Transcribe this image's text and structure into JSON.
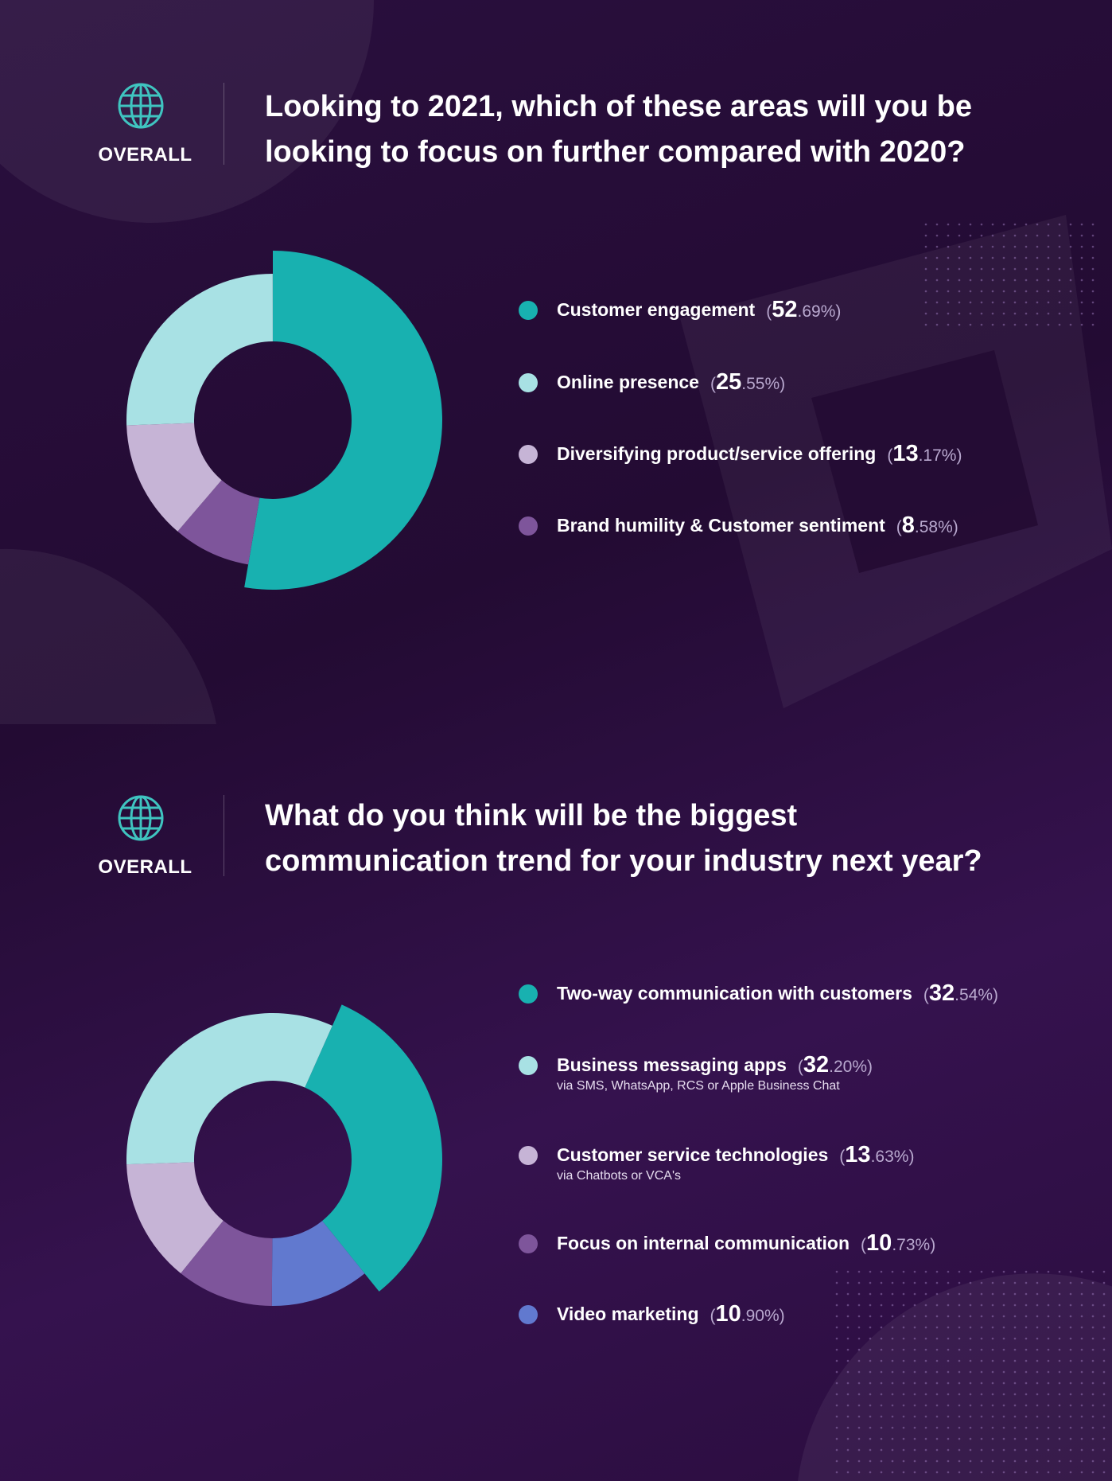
{
  "colors": {
    "teal": "#18b1b0",
    "light_cyan": "#a8e1e4",
    "lavender": "#c6b4d6",
    "purple": "#7e559b",
    "blue": "#6179cf"
  },
  "sections": [
    {
      "badge": "OVERALL",
      "icon": "globe-icon",
      "title_lines": [
        "Looking to 2021, which of these areas will you be",
        "looking to focus on further compared with 2020?"
      ]
    },
    {
      "badge": "OVERALL",
      "icon": "globe-icon",
      "title_lines": [
        "What do you think will be the biggest",
        "communication trend for your industry next year?"
      ]
    }
  ],
  "chart_data": [
    {
      "type": "pie",
      "donut": true,
      "legend": "right",
      "slices": [
        {
          "name": "Customer engagement",
          "value": 52.69,
          "int": "52",
          "dec": ".69",
          "color": "#18b1b0",
          "exploded": true
        },
        {
          "name": "Brand humility & Customer sentiment",
          "value": 8.58,
          "int": "8",
          "dec": ".58",
          "color": "#7e559b"
        },
        {
          "name": "Diversifying product/service offering",
          "value": 13.17,
          "int": "13",
          "dec": ".17",
          "color": "#c6b4d6"
        },
        {
          "name": "Online presence",
          "value": 25.55,
          "int": "25",
          "dec": ".55",
          "color": "#a8e1e4"
        }
      ],
      "legend_order": [
        0,
        3,
        2,
        1
      ]
    },
    {
      "type": "pie",
      "donut": true,
      "legend": "right",
      "slices": [
        {
          "name": "Two-way communication with customers",
          "value": 32.54,
          "int": "32",
          "dec": ".54",
          "color": "#18b1b0",
          "exploded": true
        },
        {
          "name": "Video marketing",
          "value": 10.9,
          "int": "10",
          "dec": ".90",
          "color": "#6179cf"
        },
        {
          "name": "Focus on internal communication",
          "value": 10.73,
          "int": "10",
          "dec": ".73",
          "color": "#7e559b"
        },
        {
          "name": "Customer service technologies",
          "value": 13.63,
          "int": "13",
          "dec": ".63",
          "color": "#c6b4d6",
          "sub": "via Chatbots or VCA's"
        },
        {
          "name": "Business messaging apps",
          "value": 32.2,
          "int": "32",
          "dec": ".20",
          "color": "#a8e1e4",
          "sub": "via SMS, WhatsApp, RCS or Apple Business Chat"
        }
      ],
      "legend_order": [
        0,
        4,
        3,
        2,
        1
      ]
    }
  ]
}
